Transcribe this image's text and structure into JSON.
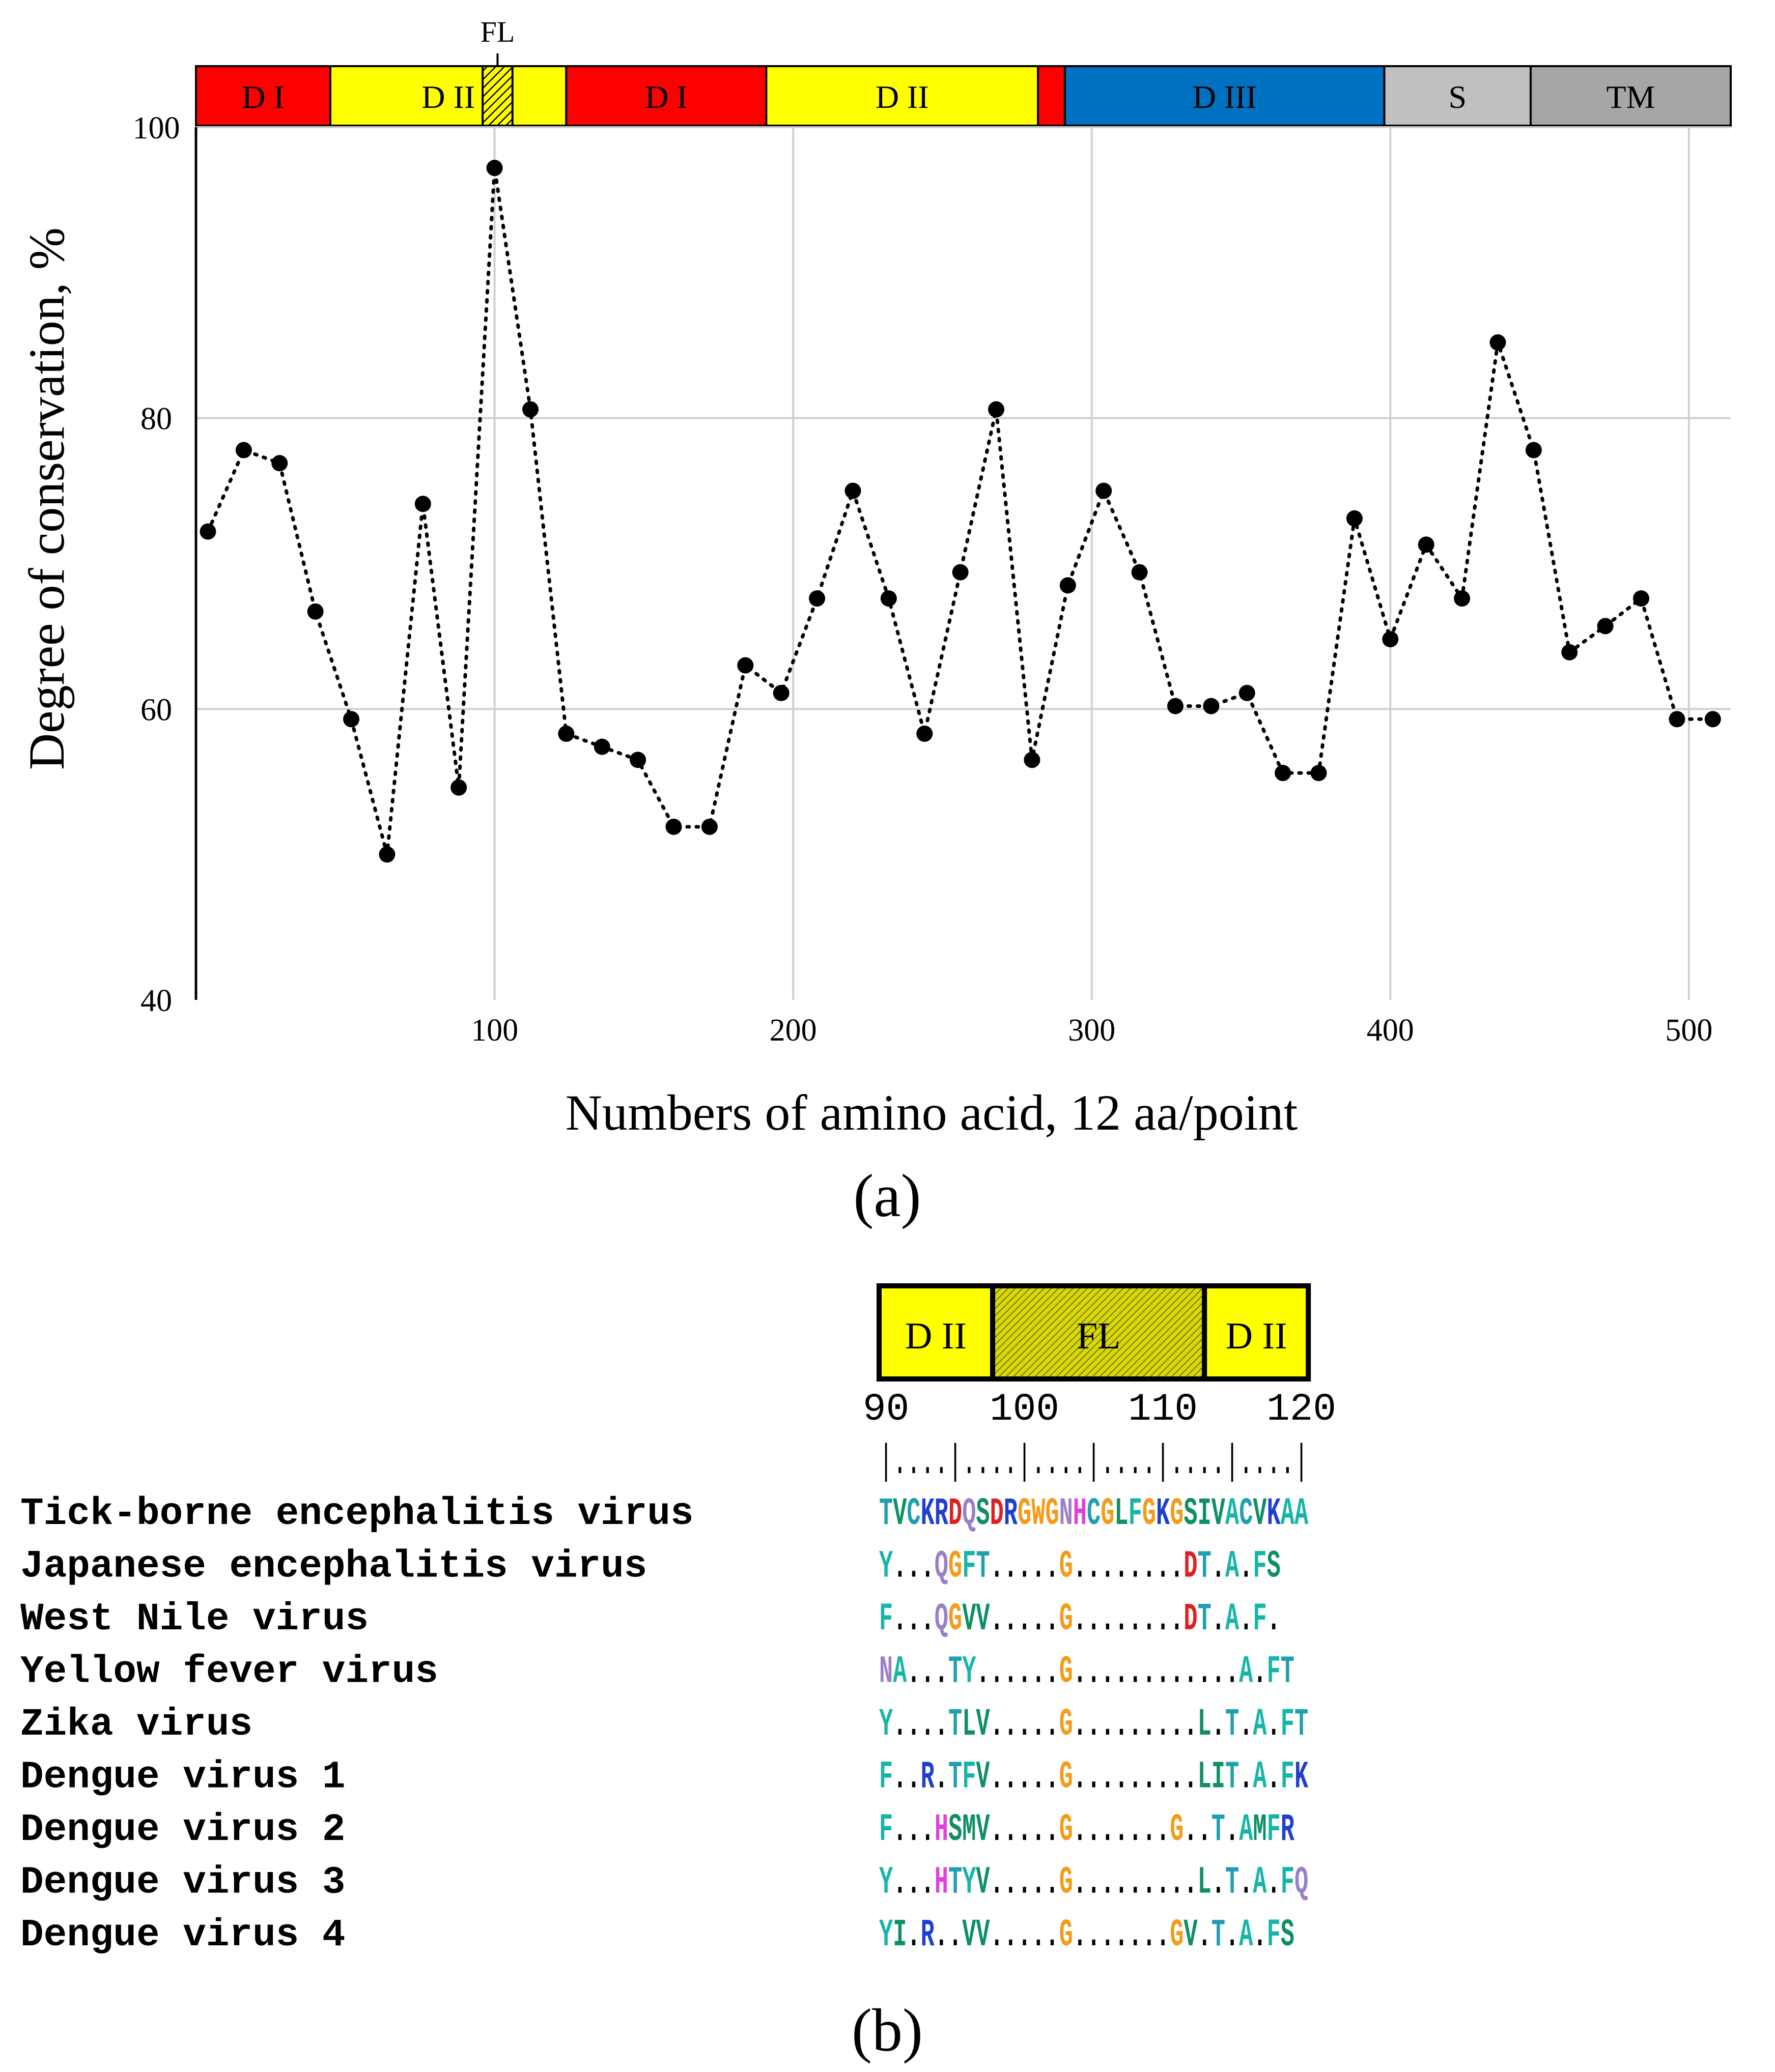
{
  "panel_a": {
    "fl_marker_label": "FL",
    "domains": [
      {
        "label": "D I",
        "start": 0,
        "end": 45,
        "color": "#ff0000"
      },
      {
        "label": "D II",
        "start": 45,
        "end": 124,
        "color": "#ffff00"
      },
      {
        "label": "D I",
        "start": 124,
        "end": 191,
        "color": "#ff0000"
      },
      {
        "label": "D II",
        "start": 191,
        "end": 282,
        "color": "#ffff00"
      },
      {
        "label": "",
        "start": 282,
        "end": 291,
        "color": "#ff0000"
      },
      {
        "label": "D III",
        "start": 291,
        "end": 398,
        "color": "#0070c0"
      },
      {
        "label": "S",
        "start": 398,
        "end": 447,
        "color": "#c0c0c0"
      },
      {
        "label": "TM",
        "start": 447,
        "end": 514,
        "color": "#a6a6a6"
      }
    ],
    "fl_region": {
      "start": 96,
      "end": 106,
      "label": "FL"
    },
    "caption": "(a)"
  },
  "chart_data": {
    "type": "line",
    "title": "",
    "xlabel": "Numbers of amino acid, 12 aa/point",
    "ylabel": "Degree of conservation, %",
    "xlim": [
      0,
      514
    ],
    "ylim": [
      40,
      100
    ],
    "x_ticks": [
      100,
      200,
      300,
      400,
      500
    ],
    "y_ticks": [
      40,
      60,
      80,
      100
    ],
    "grid": true,
    "line_style": "dotted",
    "marker": "circle",
    "series": [
      {
        "name": "Degree of conservation",
        "x": [
          4,
          16,
          28,
          40,
          52,
          64,
          76,
          88,
          100,
          112,
          124,
          136,
          148,
          160,
          172,
          184,
          196,
          208,
          220,
          232,
          244,
          256,
          268,
          280,
          292,
          304,
          316,
          328,
          340,
          352,
          364,
          376,
          388,
          400,
          412,
          424,
          436,
          448,
          460,
          472,
          484,
          496,
          508
        ],
        "y": [
          72.2,
          77.8,
          76.9,
          66.7,
          59.3,
          50.0,
          74.1,
          54.6,
          97.2,
          80.6,
          58.3,
          57.4,
          56.5,
          51.9,
          51.9,
          63.0,
          61.1,
          67.6,
          75.0,
          67.6,
          58.3,
          69.4,
          80.6,
          56.5,
          68.5,
          75.0,
          69.4,
          60.2,
          60.2,
          61.1,
          55.6,
          55.6,
          73.1,
          64.8,
          71.3,
          67.6,
          85.2,
          77.8,
          63.9,
          65.7,
          67.6,
          59.3,
          59.3
        ]
      }
    ]
  },
  "panel_b": {
    "domains": [
      {
        "label": "D II",
        "start": 90,
        "end": 98.2,
        "fill": "#ffff00"
      },
      {
        "label": "FL",
        "start": 98.2,
        "end": 113.5,
        "fill": "hatch"
      },
      {
        "label": "D II",
        "start": 113.5,
        "end": 121,
        "fill": "#ffff00"
      }
    ],
    "position_ticks": [
      "90",
      "100",
      "110",
      "120"
    ],
    "ruler": "|....|....|....|....|....|....|",
    "alignment_rows": [
      {
        "name": "Tick-borne encephalitis virus",
        "seq": "TVCKRDQSDRGWGNHCGLFGKGSIVACVKAA"
      },
      {
        "name": "Japanese encephalitis virus",
        "seq": "Y...QGFT.....G........DT.A.FS"
      },
      {
        "name": "West Nile virus",
        "seq": "F...QGVV.....G........DT.A.F."
      },
      {
        "name": "Yellow fever virus",
        "seq": "NA...TY......G............A.FT"
      },
      {
        "name": "Zika virus",
        "seq": "Y....TLV.....G.........L.T.A.FT"
      },
      {
        "name": "Dengue virus 1",
        "seq": "F..R.TFV.....G.........LIT.A.FK"
      },
      {
        "name": "Dengue virus 2",
        "seq": "F...HSMV.....G.......G..T.AMFR"
      },
      {
        "name": "Dengue virus 3",
        "seq": "Y...HTYV.....G.........L.T.A.FQ"
      },
      {
        "name": "Dengue virus 4",
        "seq": "YI.R..VV.....G.......GV.T.A.FS"
      }
    ],
    "residue_colors": {
      "A": "#17b5a8",
      "V": "#0f8f63",
      "I": "#0f8f63",
      "L": "#0f8f63",
      "C": "#1f9fb0",
      "F": "#17b5a8",
      "M": "#0f8f63",
      "W": "#f39c1a",
      "G": "#f39c1a",
      "P": "#f39c1a",
      "S": "#0f8f63",
      "T": "#1f9fb0",
      "Y": "#17b5a8",
      "N": "#9b80c8",
      "Q": "#9b80c8",
      "H": "#e040e0",
      "D": "#e02020",
      "E": "#e02020",
      "K": "#1f3fd0",
      "R": "#1f3fd0",
      "default": "#000000"
    },
    "caption": "(b)"
  }
}
